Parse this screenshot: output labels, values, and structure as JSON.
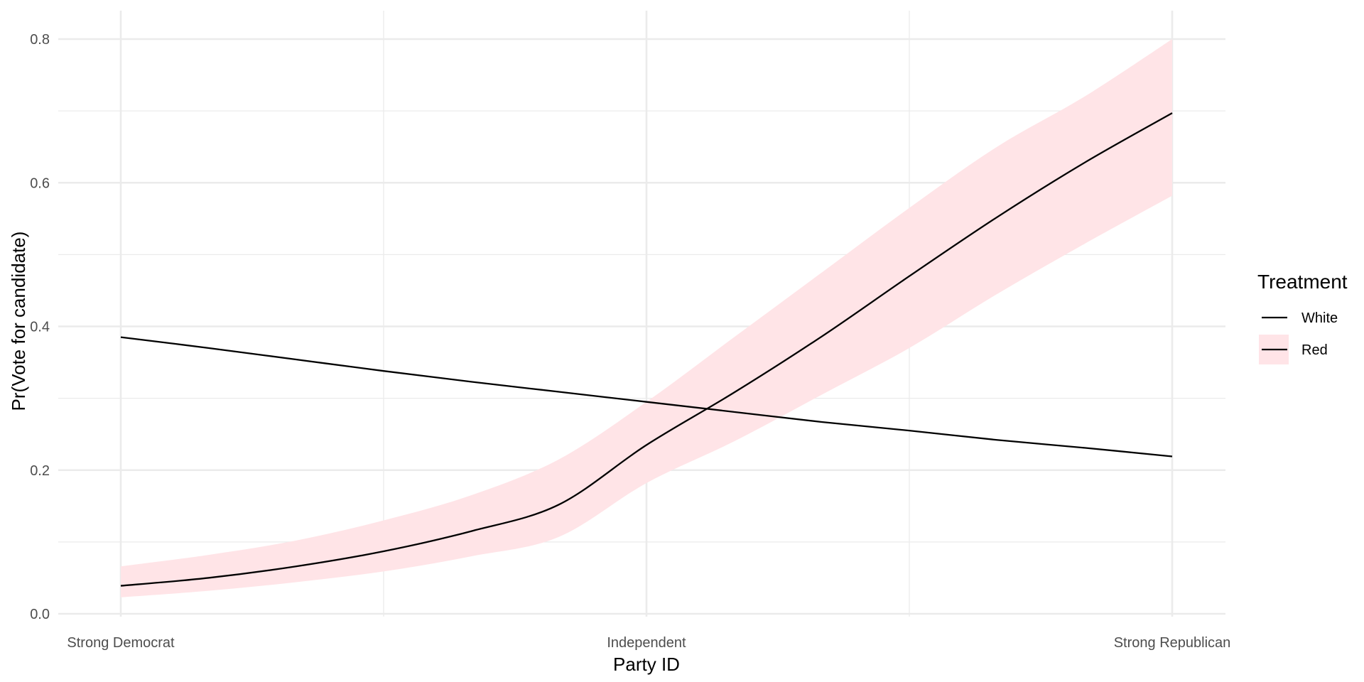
{
  "chart_data": {
    "type": "line",
    "xlabel": "Party ID",
    "ylabel": "Pr(Vote for candidate)",
    "x_ticks": [
      "Strong Democrat",
      "Independent",
      "Strong Republican"
    ],
    "x_range": [
      1,
      7
    ],
    "ylim": [
      0,
      0.8
    ],
    "y_ticks": [
      "0.0",
      "0.2",
      "0.4",
      "0.6",
      "0.8"
    ],
    "grid": true,
    "legend": {
      "title": "Treatment",
      "position": "right"
    },
    "x": [
      1,
      1.5,
      2,
      2.5,
      3,
      3.5,
      4,
      4.5,
      5,
      5.5,
      6,
      6.5,
      7
    ],
    "series": [
      {
        "name": "White",
        "color": "#000000",
        "values": [
          0.385,
          0.37,
          0.354,
          0.338,
          0.323,
          0.309,
          0.295,
          0.281,
          0.267,
          0.255,
          0.242,
          0.231,
          0.219
        ]
      },
      {
        "name": "Red",
        "color": "#000000",
        "ribbon_color": "#ffe4e7",
        "values": [
          0.039,
          0.05,
          0.066,
          0.087,
          0.115,
          0.152,
          0.235,
          0.308,
          0.386,
          0.47,
          0.552,
          0.628,
          0.697
        ],
        "lower": [
          0.023,
          0.032,
          0.044,
          0.059,
          0.08,
          0.107,
          0.182,
          0.24,
          0.305,
          0.37,
          0.445,
          0.515,
          0.582
        ],
        "upper": [
          0.066,
          0.082,
          0.102,
          0.13,
          0.165,
          0.215,
          0.295,
          0.385,
          0.475,
          0.565,
          0.65,
          0.72,
          0.8
        ]
      }
    ]
  }
}
